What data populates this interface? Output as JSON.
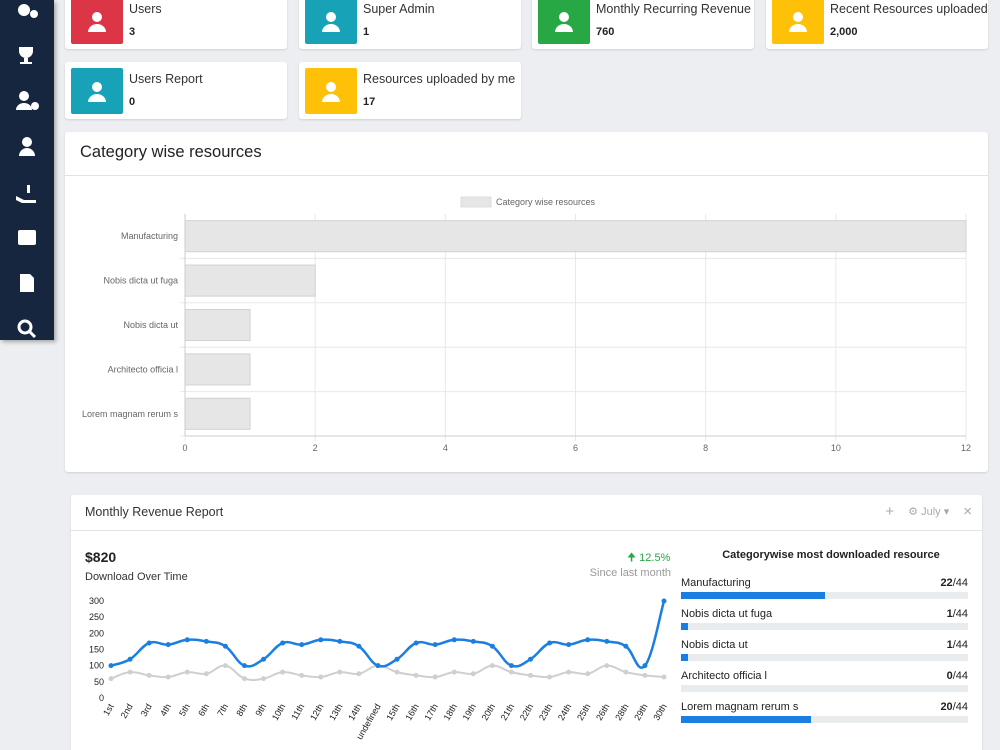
{
  "stats": [
    {
      "label": "Users",
      "value": 3,
      "color": "#dc3545"
    },
    {
      "label": "Super Admin",
      "value": 1,
      "color": "#17a2b8"
    },
    {
      "label": "Monthly Recurring Revenue",
      "value": 760,
      "color": "#28a745"
    },
    {
      "label": "Recent Resources uploaded",
      "value": "2,000",
      "color": "#ffc107"
    },
    {
      "label": "Users Report",
      "value": 0,
      "color": "#17a2b8"
    },
    {
      "label": "Resources uploaded by me",
      "value": 17,
      "color": "#ffc107"
    }
  ],
  "category_chart": {
    "type": "bar",
    "title": "Category wise resources",
    "categories": [
      "Manufacturing",
      "Nobis dicta ut fuga",
      "Nobis dicta ut",
      "Architecto officia l",
      "Lorem magnam rerum s"
    ],
    "series": [
      {
        "name": "Category wise resources",
        "color": "#e6e6e6",
        "values": [
          12,
          2,
          1,
          1,
          1
        ]
      }
    ],
    "xlim": [
      0,
      12
    ],
    "xticks": [
      0,
      2,
      4,
      6,
      8,
      10,
      12
    ],
    "grid": true
  },
  "revenue": {
    "title": "Monthly Revenue Report",
    "month": "July",
    "amount": "$820",
    "subtitle": "Download Over Time",
    "change": "12.5%",
    "change_label": "Since last month",
    "chart": {
      "type": "line",
      "categories": [
        "1st",
        "2nd",
        "3rd",
        "4th",
        "5th",
        "6th",
        "7th",
        "8th",
        "9th",
        "10th",
        "11th",
        "12th",
        "13th",
        "14th",
        "undefined",
        "15th",
        "16th",
        "17th",
        "18th",
        "19th",
        "20th",
        "21th",
        "22th",
        "23th",
        "24th",
        "25th",
        "26th",
        "28th",
        "29th",
        "30th"
      ],
      "series": [
        {
          "color": "#1a7fe0",
          "values": [
            100,
            120,
            170,
            165,
            180,
            175,
            160,
            100,
            120,
            170,
            165,
            180,
            175,
            160,
            100,
            120,
            170,
            165,
            180,
            175,
            160,
            100,
            120,
            170,
            165,
            180,
            175,
            160,
            100,
            300
          ]
        },
        {
          "color": "#cfcfcf",
          "values": [
            60,
            80,
            70,
            65,
            80,
            75,
            100,
            60,
            60,
            80,
            70,
            65,
            80,
            75,
            100,
            80,
            70,
            65,
            80,
            75,
            100,
            80,
            70,
            65,
            80,
            75,
            100,
            80,
            70,
            65
          ]
        }
      ],
      "ylim": [
        0,
        300
      ],
      "yticks": [
        0,
        50,
        100,
        150,
        200,
        250,
        300
      ]
    },
    "progress": {
      "title": "Categorywise most downloaded resource",
      "color": "#1a7fe0",
      "items": [
        {
          "label": "Manufacturing",
          "value": 22,
          "total": 44
        },
        {
          "label": "Nobis dicta ut fuga",
          "value": 1,
          "total": 44
        },
        {
          "label": "Nobis dicta ut",
          "value": 1,
          "total": 44
        },
        {
          "label": "Architecto officia l",
          "value": 0,
          "total": 44
        },
        {
          "label": "Lorem magnam rerum s",
          "value": 20,
          "total": 44
        }
      ]
    }
  }
}
